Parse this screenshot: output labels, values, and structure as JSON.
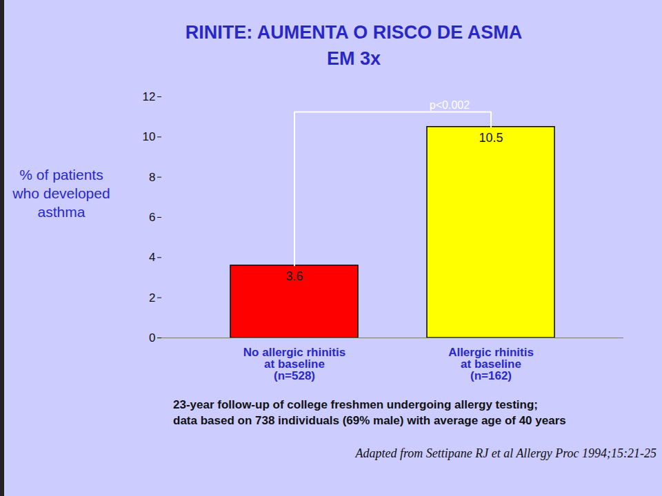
{
  "chart_data": {
    "type": "bar",
    "title": "RINITE: AUMENTA O RISCO DE ASMA\nEM 3x",
    "y_label": "% of patients who developed asthma",
    "categories": [
      "No allergic rhinitis\nat baseline\n(n=528)",
      "Allergic rhinitis\nat baseline\n(n=162)"
    ],
    "values": [
      3.6,
      10.5
    ],
    "colors": [
      "#ff0000",
      "#ffff00"
    ],
    "ylim": [
      0,
      12
    ],
    "yticks": [
      0,
      2,
      4,
      6,
      8,
      10,
      12
    ],
    "grid": false,
    "data_labels": true,
    "annotation": "p<0.002",
    "notes": "23-year follow-up of college freshmen undergoing allergy testing;\ndata based on 738 individuals (69% male) with average age of 40 years",
    "source": "Adapted from Settipane RJ et al Allergy Proc 1994;15:21-25"
  }
}
